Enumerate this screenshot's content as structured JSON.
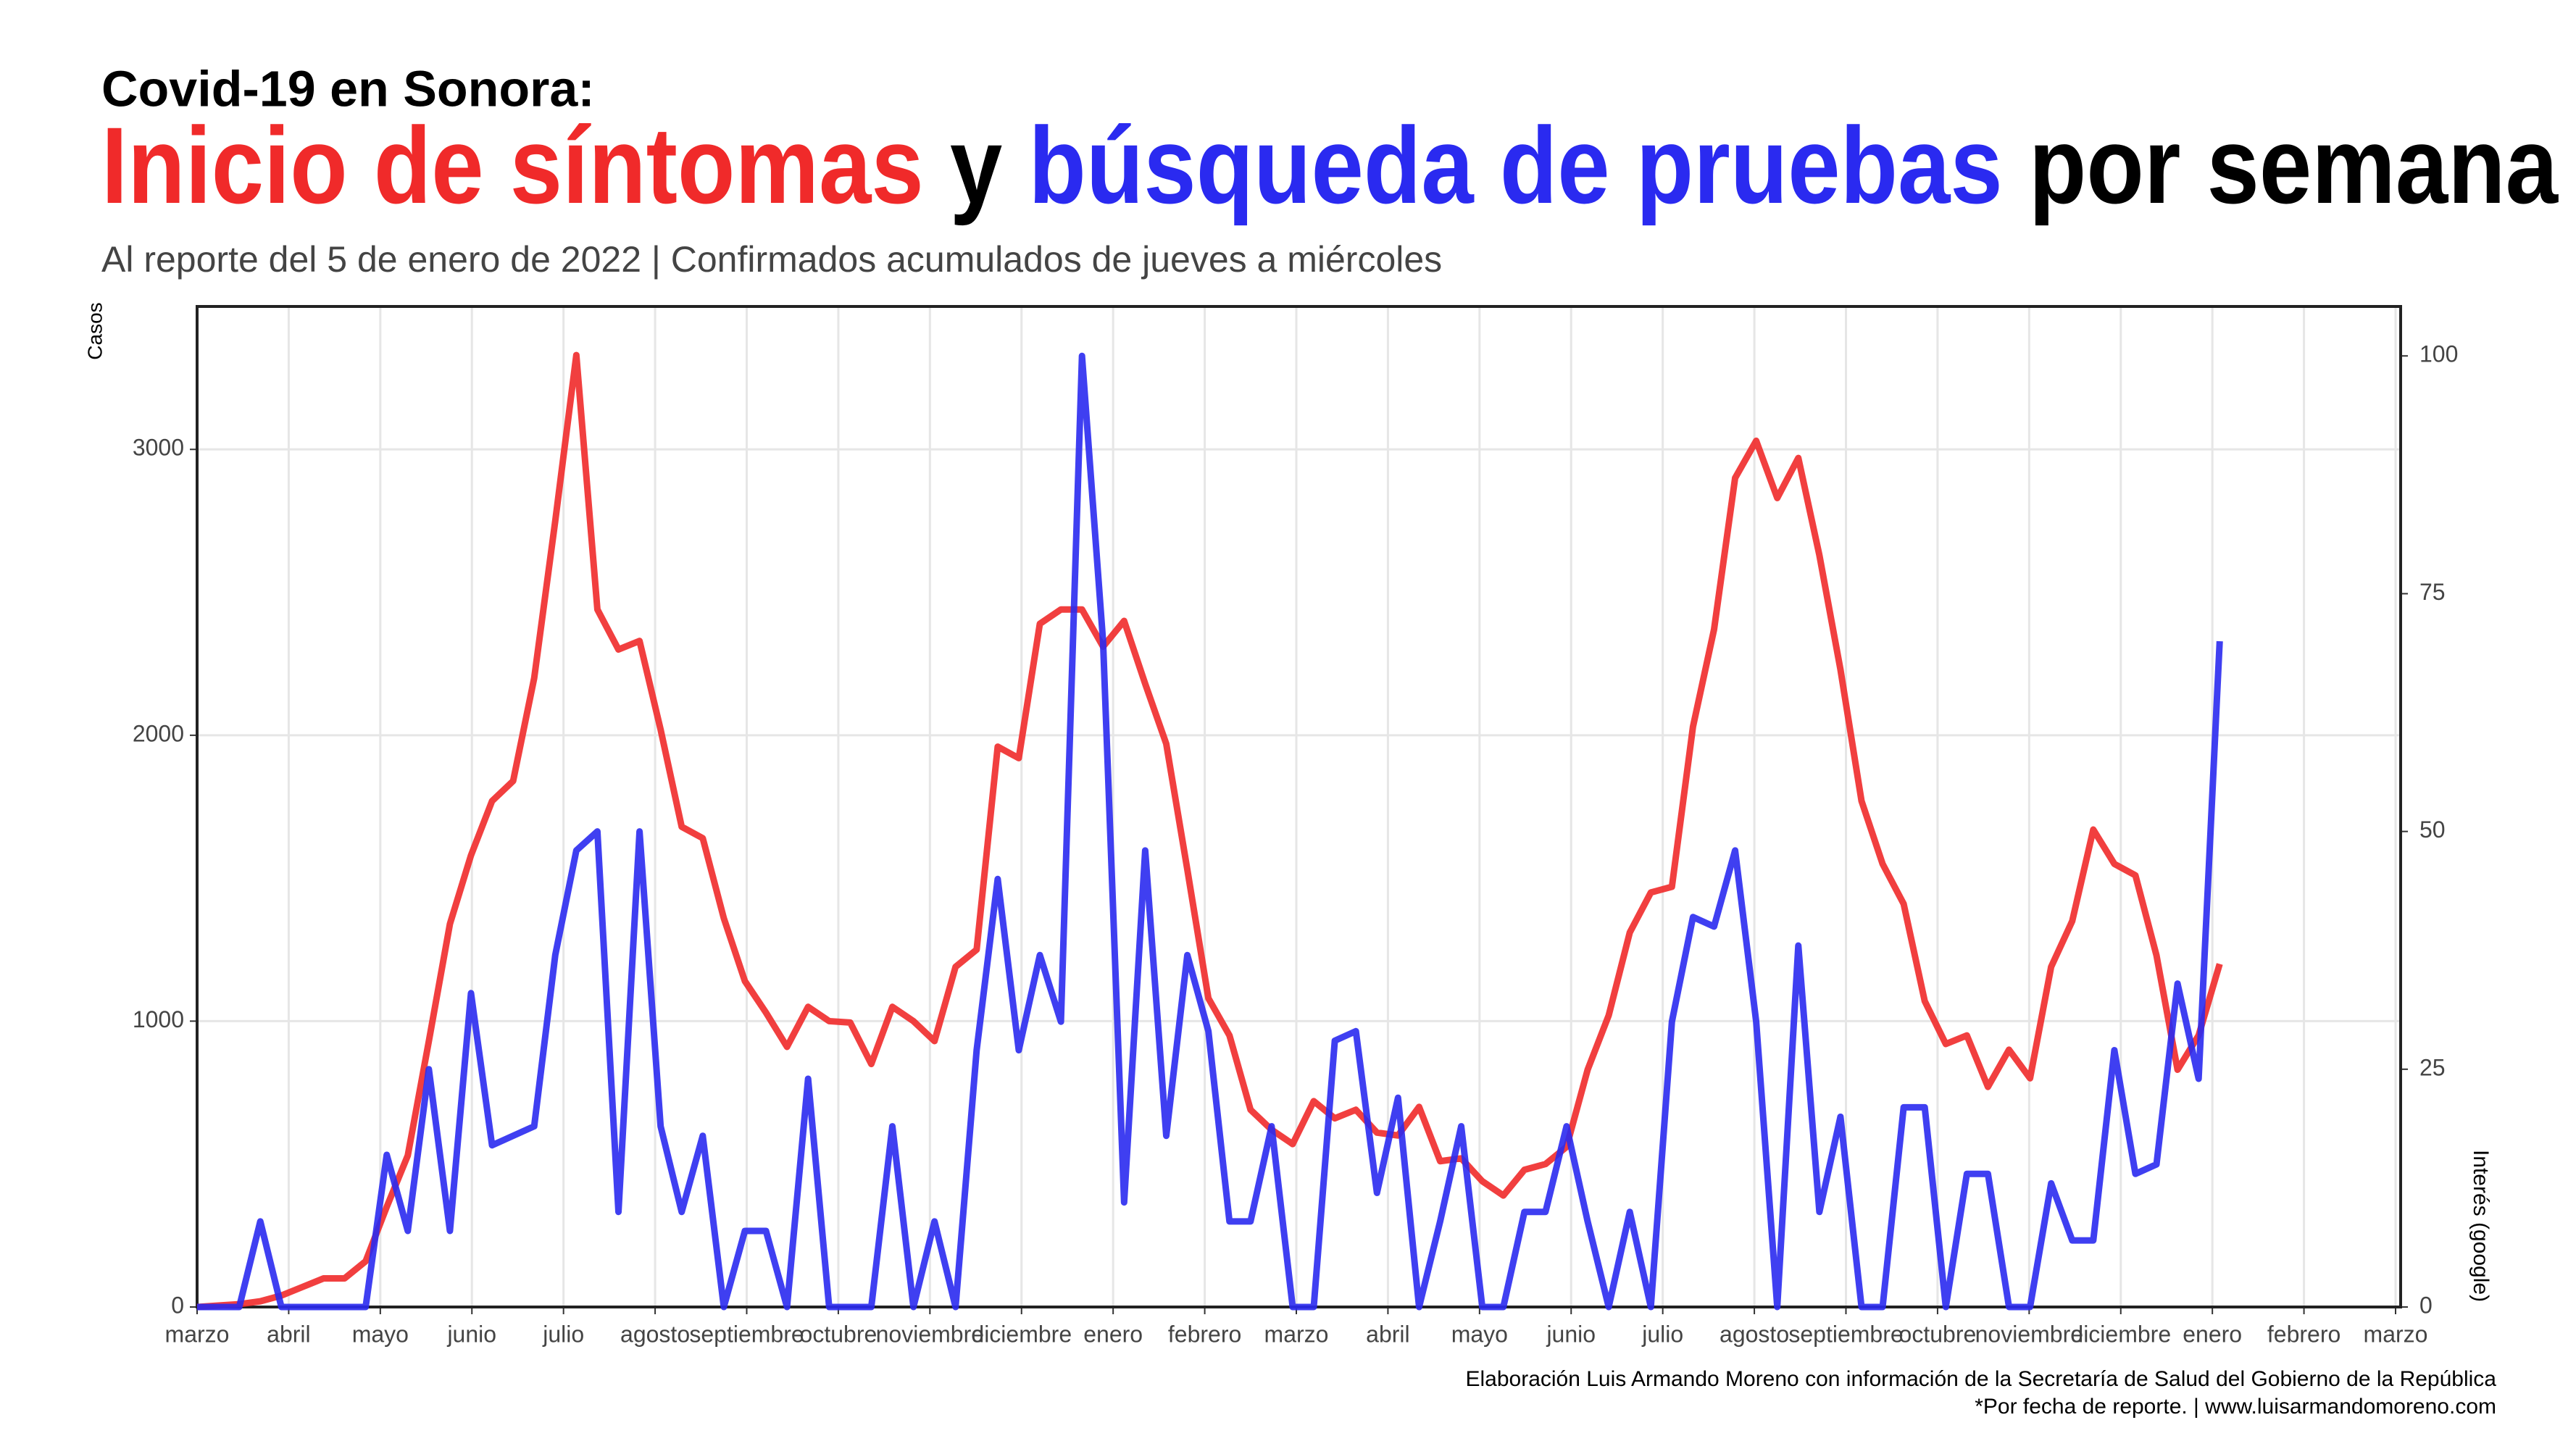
{
  "chart_data": {
    "type": "line",
    "title": "Covid-19 en Sonora:",
    "title_words": [
      "y",
      "por semana"
    ],
    "subtitle": "Al reporte del 5 de enero de 2022 | Confirmados acumulados de jueves a miércoles",
    "ylabel": "Casos",
    "y2label": "Interés (google)",
    "footer": [
      "Elaboración Luis Armando Moreno con información de la Secretaría de Salud del Gobierno de la República",
      "*Por fecha de reporte. | www.luisarmandomoreno.com"
    ],
    "x": [
      0,
      0.23,
      0.46,
      0.69,
      0.92,
      1.15,
      1.38,
      1.61,
      1.84,
      2.07,
      2.3,
      2.53,
      2.76,
      2.99,
      3.22,
      3.45,
      3.68,
      3.91,
      4.14,
      4.37,
      4.6,
      4.83,
      5.06,
      5.29,
      5.52,
      5.75,
      5.98,
      6.21,
      6.44,
      6.67,
      6.9,
      7.13,
      7.36,
      7.59,
      7.82,
      8.05,
      8.28,
      8.51,
      8.74,
      8.97,
      9.2,
      9.43,
      9.66,
      9.89,
      10.12,
      10.35,
      10.58,
      10.81,
      11.04,
      11.27,
      11.5,
      11.73,
      11.96,
      12.19,
      12.42,
      12.65,
      12.88,
      13.11,
      13.34,
      13.57,
      13.8,
      14.03,
      14.26,
      14.49,
      14.72,
      14.95,
      15.18,
      15.41,
      15.64,
      15.87,
      16.1,
      16.33,
      16.56,
      16.79,
      17.02,
      17.25,
      17.48,
      17.71,
      17.94,
      18.17,
      18.4,
      18.63,
      18.86,
      19.09,
      19.32,
      19.55,
      19.78,
      20.01,
      20.24,
      20.47,
      20.7,
      20.93,
      21.16,
      21.39,
      21.62,
      21.85,
      22.08
    ],
    "series": [
      {
        "name": "Inicio de síntomas",
        "color": "#f02a2a",
        "axis": "y",
        "values": [
          0,
          5,
          10,
          20,
          40,
          70,
          100,
          100,
          160,
          350,
          530,
          930,
          1340,
          1580,
          1770,
          1840,
          2200,
          2750,
          3330,
          2440,
          2300,
          2330,
          2020,
          1680,
          1640,
          1360,
          1140,
          1030,
          910,
          1050,
          1000,
          995,
          850,
          1050,
          1000,
          930,
          1190,
          1250,
          1960,
          1920,
          2390,
          2440,
          2440,
          2310,
          2400,
          2180,
          1970,
          1530,
          1080,
          950,
          690,
          620,
          570,
          720,
          660,
          690,
          610,
          600,
          700,
          510,
          520,
          440,
          390,
          480,
          500,
          560,
          830,
          1020,
          1310,
          1450,
          1470,
          2030,
          2370,
          2900,
          3030,
          2830,
          2970,
          2630,
          2230,
          1770,
          1550,
          1410,
          1070,
          920,
          950,
          770,
          900,
          800,
          1190,
          1350,
          1670,
          1550,
          1510,
          1230,
          830,
          950,
          1200
        ]
      },
      {
        "name": "búsqueda de pruebas",
        "color": "#2a2af0",
        "axis": "y2",
        "values": [
          0,
          0,
          0,
          9,
          0,
          0,
          0,
          0,
          0,
          16,
          8,
          25,
          8,
          33,
          17,
          18,
          19,
          37,
          48,
          50,
          10,
          50,
          19,
          10,
          18,
          0,
          8,
          8,
          0,
          24,
          0,
          0,
          0,
          19,
          0,
          9,
          0,
          27,
          45,
          27,
          37,
          30,
          100,
          70,
          11,
          48,
          18,
          37,
          29,
          9,
          9,
          19,
          0,
          0,
          28,
          29,
          12,
          22,
          0,
          9,
          19,
          0,
          0,
          10,
          10,
          19,
          9,
          0,
          10,
          0,
          30,
          41,
          40,
          48,
          30,
          0,
          38,
          10,
          20,
          0,
          0,
          21,
          21,
          0,
          14,
          14,
          0,
          0,
          13,
          7,
          7,
          27,
          14,
          15,
          34,
          24,
          70
        ]
      }
    ],
    "xlim": [
      0,
      24
    ],
    "xticks": [
      {
        "value": 0,
        "label": "marzo"
      },
      {
        "value": 1,
        "label": "abril"
      },
      {
        "value": 2,
        "label": "mayo"
      },
      {
        "value": 3,
        "label": "junio"
      },
      {
        "value": 4,
        "label": "julio"
      },
      {
        "value": 5,
        "label": "agosto"
      },
      {
        "value": 6,
        "label": "septiembre"
      },
      {
        "value": 7,
        "label": "octubre"
      },
      {
        "value": 8,
        "label": "noviembre"
      },
      {
        "value": 9,
        "label": "diciembre"
      },
      {
        "value": 10,
        "label": "enero"
      },
      {
        "value": 11,
        "label": "febrero"
      },
      {
        "value": 12,
        "label": "marzo"
      },
      {
        "value": 13,
        "label": "abril"
      },
      {
        "value": 14,
        "label": "mayo"
      },
      {
        "value": 15,
        "label": "junio"
      },
      {
        "value": 16,
        "label": "julio"
      },
      {
        "value": 17,
        "label": "agosto"
      },
      {
        "value": 18,
        "label": "septiembre"
      },
      {
        "value": 19,
        "label": "octubre"
      },
      {
        "value": 20,
        "label": "noviembre"
      },
      {
        "value": 21,
        "label": "diciembre"
      },
      {
        "value": 22,
        "label": "enero"
      },
      {
        "value": 23,
        "label": "febrero"
      },
      {
        "value": 24,
        "label": "marzo"
      }
    ],
    "ylim": [
      0,
      3500
    ],
    "yticks": [
      0,
      1000,
      2000,
      3000
    ],
    "y2lim": [
      0,
      105.2
    ],
    "y2ticks": [
      0,
      25,
      50,
      75,
      100
    ],
    "grid": true
  }
}
